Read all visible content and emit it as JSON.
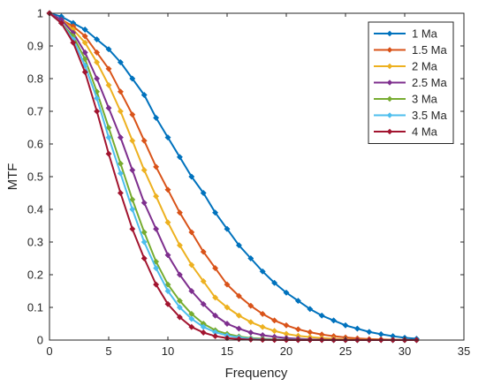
{
  "chart_data": {
    "type": "line",
    "xlabel": "Frequency",
    "ylabel": "MTF",
    "xlim": [
      0,
      35
    ],
    "ylim": [
      0,
      1
    ],
    "xticks": [
      "0",
      "5",
      "10",
      "15",
      "20",
      "25",
      "30",
      "35"
    ],
    "yticks": [
      "0",
      "0.1",
      "0.2",
      "0.3",
      "0.4",
      "0.5",
      "0.6",
      "0.7",
      "0.8",
      "0.9",
      "1"
    ],
    "grid": false,
    "legend_position": "top-right",
    "x": [
      0,
      1,
      2,
      3,
      4,
      5,
      6,
      7,
      8,
      9,
      10,
      11,
      12,
      13,
      14,
      15,
      16,
      17,
      18,
      19,
      20,
      21,
      22,
      23,
      24,
      25,
      26,
      27,
      28,
      29,
      30,
      31
    ],
    "series": [
      {
        "name": "1 Ma",
        "color": "#0072BD",
        "values": [
          1.0,
          0.99,
          0.97,
          0.95,
          0.92,
          0.89,
          0.85,
          0.8,
          0.75,
          0.68,
          0.62,
          0.56,
          0.5,
          0.45,
          0.39,
          0.34,
          0.29,
          0.25,
          0.21,
          0.175,
          0.145,
          0.12,
          0.095,
          0.075,
          0.06,
          0.045,
          0.035,
          0.025,
          0.018,
          0.012,
          0.007,
          0.004
        ]
      },
      {
        "name": "1.5 Ma",
        "color": "#D95319",
        "values": [
          1.0,
          0.98,
          0.96,
          0.93,
          0.88,
          0.83,
          0.76,
          0.69,
          0.61,
          0.53,
          0.46,
          0.39,
          0.33,
          0.27,
          0.22,
          0.17,
          0.135,
          0.105,
          0.08,
          0.06,
          0.045,
          0.033,
          0.024,
          0.017,
          0.012,
          0.008,
          0.005,
          0.003,
          0.002,
          0.001,
          0.0005,
          0.0
        ]
      },
      {
        "name": "2 Ma",
        "color": "#EDB120",
        "values": [
          1.0,
          0.98,
          0.95,
          0.91,
          0.85,
          0.78,
          0.7,
          0.61,
          0.52,
          0.44,
          0.36,
          0.29,
          0.23,
          0.18,
          0.13,
          0.1,
          0.075,
          0.055,
          0.04,
          0.028,
          0.019,
          0.013,
          0.009,
          0.006,
          0.004,
          0.002,
          0.001,
          0.0007,
          0.0004,
          0.0002,
          0.0001,
          0.0
        ]
      },
      {
        "name": "2.5 Ma",
        "color": "#7E2F8E",
        "values": [
          1.0,
          0.98,
          0.94,
          0.88,
          0.8,
          0.71,
          0.62,
          0.52,
          0.42,
          0.34,
          0.26,
          0.2,
          0.15,
          0.11,
          0.075,
          0.05,
          0.035,
          0.023,
          0.015,
          0.01,
          0.006,
          0.004,
          0.002,
          0.001,
          0.0007,
          0.0004,
          0.0002,
          0.0001,
          0.0,
          0.0,
          0.0,
          0.0
        ]
      },
      {
        "name": "3 Ma",
        "color": "#77AC30",
        "values": [
          1.0,
          0.97,
          0.93,
          0.86,
          0.76,
          0.65,
          0.54,
          0.43,
          0.33,
          0.24,
          0.17,
          0.12,
          0.08,
          0.05,
          0.03,
          0.019,
          0.011,
          0.006,
          0.004,
          0.002,
          0.001,
          0.0006,
          0.0003,
          0.0001,
          0.0,
          0.0,
          0.0,
          0.0,
          0.0,
          0.0,
          0.0,
          0.0
        ]
      },
      {
        "name": "3.5 Ma",
        "color": "#4DBEEE",
        "values": [
          1.0,
          0.97,
          0.92,
          0.84,
          0.74,
          0.62,
          0.51,
          0.4,
          0.3,
          0.22,
          0.15,
          0.1,
          0.065,
          0.04,
          0.024,
          0.014,
          0.008,
          0.004,
          0.002,
          0.001,
          0.0006,
          0.0003,
          0.0001,
          0.0,
          0.0,
          0.0,
          0.0,
          0.0,
          0.0,
          0.0,
          0.0,
          0.0
        ]
      },
      {
        "name": "4 Ma",
        "color": "#A2142F",
        "values": [
          1.0,
          0.97,
          0.91,
          0.82,
          0.7,
          0.57,
          0.45,
          0.34,
          0.25,
          0.17,
          0.11,
          0.07,
          0.04,
          0.023,
          0.012,
          0.006,
          0.003,
          0.0015,
          0.0007,
          0.0003,
          0.0001,
          0.0,
          0.0,
          0.0,
          0.0,
          0.0,
          0.0,
          0.0,
          0.0,
          0.0,
          0.0,
          0.0
        ]
      }
    ]
  }
}
